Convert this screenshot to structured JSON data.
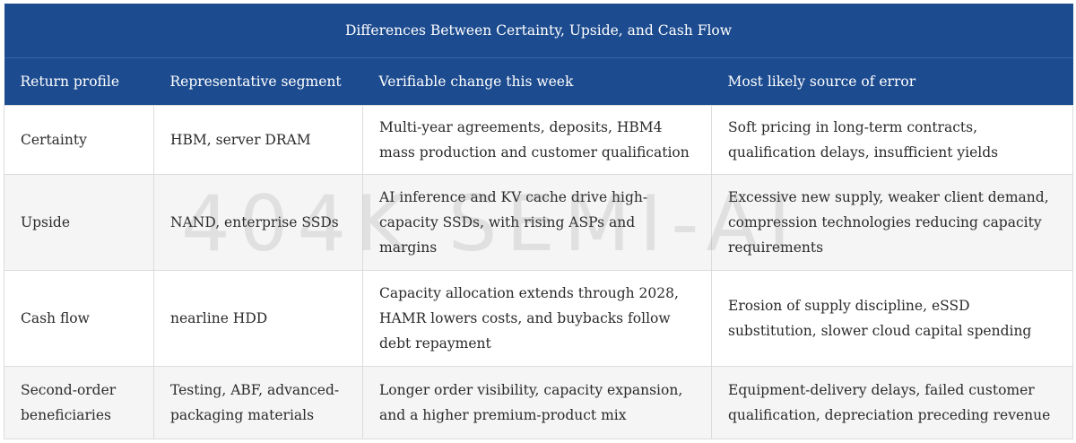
{
  "table": {
    "title": "Differences Between Certainty, Upside, and Cash Flow",
    "headers": [
      "Return profile",
      "Representative segment",
      "Verifiable change this week",
      "Most likely source of error"
    ],
    "rows": [
      {
        "profile": "Certainty",
        "segment": "HBM, server DRAM",
        "change": "Multi-year agreements, deposits, HBM4 mass production and customer qualification",
        "error": "Soft pricing in long-term contracts, qualification delays, insufficient yields"
      },
      {
        "profile": "Upside",
        "segment": "NAND, enterprise SSDs",
        "change": "AI inference and KV cache drive high-capacity SSDs, with rising ASPs and margins",
        "error": "Excessive new supply, weaker client demand, compression technologies reducing capacity requirements"
      },
      {
        "profile": "Cash flow",
        "segment": "nearline HDD",
        "change": "Capacity allocation extends through 2028, HAMR lowers costs, and buybacks follow debt repayment",
        "error": "Erosion of supply discipline, eSSD substitution, slower cloud capital spending"
      },
      {
        "profile": "Second-order beneficiaries",
        "segment": "Testing, ABF, advanced-packaging materials",
        "change": "Longer order visibility, capacity expansion, and a higher premium-product mix",
        "error": "Equipment-delivery delays, failed customer qualification, depreciation preceding revenue"
      }
    ]
  },
  "watermark": "404K SEMI-AI",
  "colors": {
    "header_bg": "#1c4b8f",
    "header_text": "#ffffff",
    "row_alt_bg": "#f5f5f5",
    "border": "#dcdcdc"
  }
}
